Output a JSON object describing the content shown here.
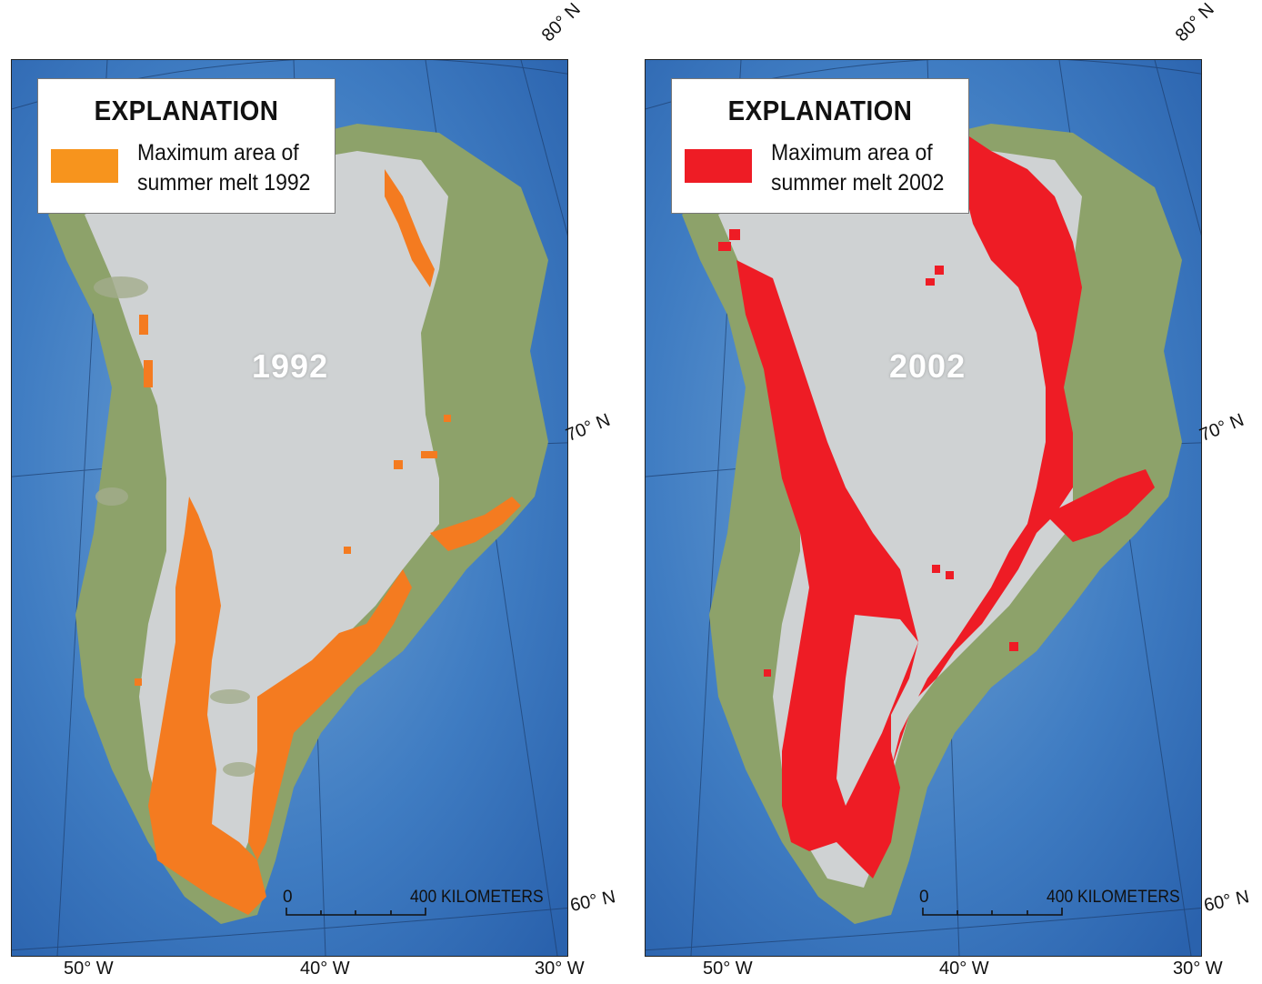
{
  "panels": [
    {
      "legend_title": "EXPLANATION",
      "legend_text": "Maximum area of\nsummer melt 1992",
      "year": "1992",
      "melt_color": "#f47b20",
      "scale_zero": "0",
      "scale_end": "400 KILOMETERS"
    },
    {
      "legend_title": "EXPLANATION",
      "legend_text": "Maximum area of\nsummer melt 2002",
      "year": "2002",
      "melt_color": "#ee1c25",
      "scale_zero": "0",
      "scale_end": "400 KILOMETERS"
    }
  ],
  "latitudes": [
    "80° N",
    "70° N",
    "60° N"
  ],
  "longitudes": [
    "50° W",
    "40° W",
    "30° W"
  ],
  "colors": {
    "ocean_deep": "#2a62ad",
    "ocean_light": "#6fa3d6",
    "ice": "#cfd2d3",
    "land": "#8da26a"
  }
}
